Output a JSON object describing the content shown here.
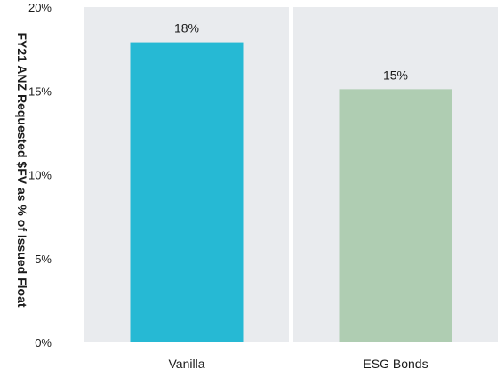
{
  "chart_data": {
    "type": "bar",
    "title": "",
    "xlabel": "",
    "ylabel": "FY21 ANZ Requested $FV as % of Issued Float",
    "categories": [
      "Vanilla",
      "ESG Bonds"
    ],
    "values": [
      17.9,
      15.1
    ],
    "data_labels": [
      "18%",
      "15%"
    ],
    "ylim": [
      0,
      20
    ],
    "yticks": [
      0,
      5,
      10,
      15,
      20
    ],
    "ytick_labels": [
      "0%",
      "5%",
      "10%",
      "15%",
      "20%"
    ],
    "bar_colors": [
      "#26b9d4",
      "#afcdb2"
    ],
    "panel_color": "#e9ebee",
    "grid": false,
    "legend": "none"
  }
}
